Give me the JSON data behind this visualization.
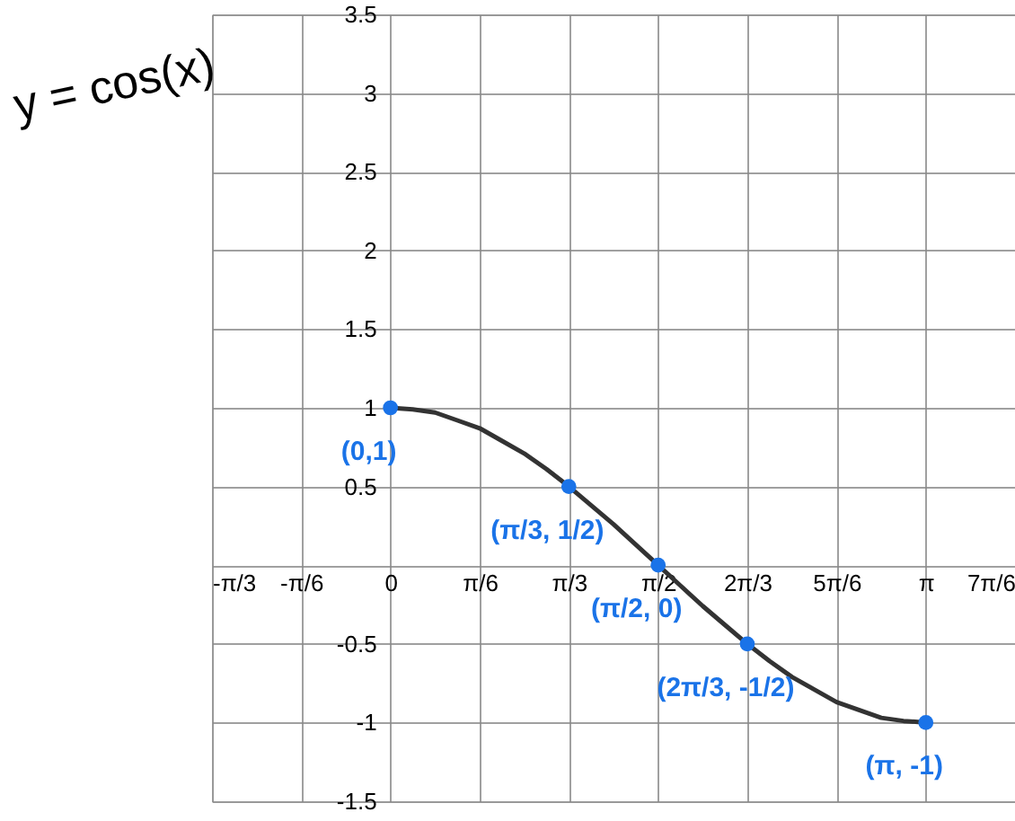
{
  "chart_data": {
    "type": "line",
    "title": "y = cos(x)",
    "xlim": [
      -1.047,
      3.665
    ],
    "ylim": [
      -1.5,
      3.5
    ],
    "xticks": [
      {
        "value": -1.047,
        "label": "-π/3"
      },
      {
        "value": -0.524,
        "label": "-π/6"
      },
      {
        "value": 0,
        "label": "0"
      },
      {
        "value": 0.524,
        "label": "π/6"
      },
      {
        "value": 1.047,
        "label": "π/3"
      },
      {
        "value": 1.571,
        "label": "π/2"
      },
      {
        "value": 2.094,
        "label": "2π/3"
      },
      {
        "value": 2.618,
        "label": "5π/6"
      },
      {
        "value": 3.142,
        "label": "π"
      },
      {
        "value": 3.665,
        "label": "7π/6"
      }
    ],
    "yticks": [
      -1.5,
      -1,
      -0.5,
      {
        "value": 0,
        "label": null
      },
      0.5,
      1,
      1.5,
      2,
      2.5,
      3,
      3.5
    ],
    "grid": true,
    "series": [
      {
        "color": "#333333",
        "line_style": "solid",
        "marker": "none",
        "x": [
          0,
          0.131,
          0.262,
          0.393,
          0.524,
          0.654,
          0.785,
          0.916,
          1.047,
          1.178,
          1.309,
          1.44,
          1.571,
          1.702,
          1.833,
          1.963,
          2.094,
          2.225,
          2.356,
          2.487,
          2.618,
          2.749,
          2.88,
          3.011,
          3.142
        ],
        "values": [
          1,
          0.99,
          0.97,
          0.92,
          0.87,
          0.79,
          0.71,
          0.61,
          0.5,
          0.38,
          0.26,
          0.13,
          0,
          -0.13,
          -0.26,
          -0.38,
          -0.5,
          -0.61,
          -0.71,
          -0.79,
          -0.87,
          -0.92,
          -0.97,
          -0.99,
          -1
        ]
      },
      {
        "type": "scatter",
        "color": "#1a73e8",
        "marker": "circle",
        "x": [
          0,
          1.047,
          1.571,
          2.094,
          3.142
        ],
        "values": [
          1,
          0.5,
          0,
          -0.5,
          -1
        ]
      }
    ],
    "annotations": [
      {
        "text": "(0,1)",
        "x": 0,
        "y": 1
      },
      {
        "text": "(π/3, 1/2)",
        "x": 1.047,
        "y": 0.5
      },
      {
        "text": "(π/2, 0)",
        "x": 1.571,
        "y": 0
      },
      {
        "text": "(2π/3, -1/2)",
        "x": 2.094,
        "y": -0.5
      },
      {
        "text": "(π, -1)",
        "x": 3.142,
        "y": -1
      }
    ]
  }
}
